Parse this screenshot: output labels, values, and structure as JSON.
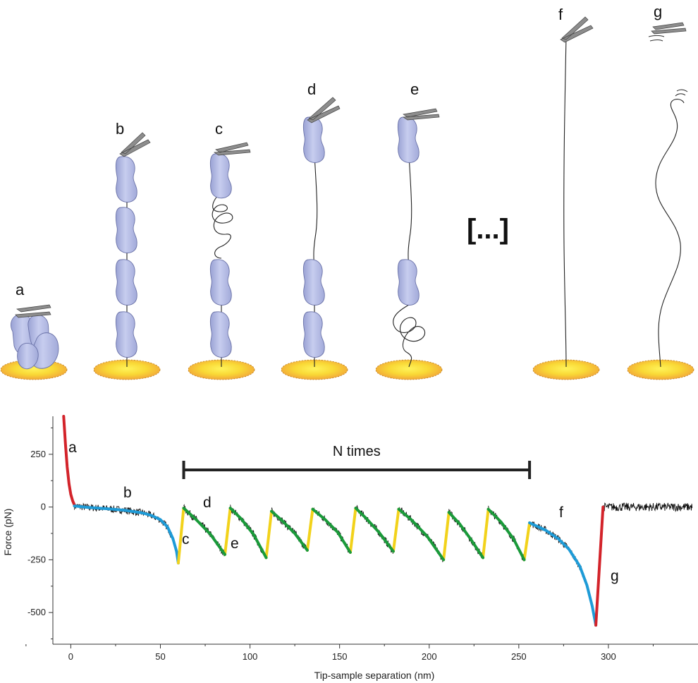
{
  "illustration": {
    "stages": [
      {
        "letter": "a"
      },
      {
        "letter": "b"
      },
      {
        "letter": "c"
      },
      {
        "letter": "d"
      },
      {
        "letter": "e"
      },
      {
        "letter": "f"
      },
      {
        "letter": "g"
      }
    ],
    "ellipsis": "[...]",
    "colors": {
      "domain": "#b9c0e6",
      "domain_edge": "#6a72a8",
      "substrate": "#f7c532",
      "cantilever": "#8a8a8a",
      "tether": "#222222"
    }
  },
  "chart_data": {
    "type": "line",
    "xlabel": "Tip-sample separation (nm)",
    "ylabel": "Force (pN)",
    "xlim": [
      -10,
      350
    ],
    "ylim": [
      -650,
      430
    ],
    "x_ticks": [
      0,
      50,
      100,
      150,
      200,
      250,
      300
    ],
    "y_ticks": [
      250,
      0,
      -250,
      -500
    ],
    "bracket_label": "N times",
    "bracket_range": [
      63,
      256
    ],
    "segment_labels": [
      "a",
      "b",
      "c",
      "d",
      "e",
      "f",
      "g"
    ],
    "colors": {
      "contact": "#d3232a",
      "wlc_fit": "#1e9bd7",
      "unfold": "#f2d21b",
      "domain_fit": "#1a9a3a",
      "raw": "#111111"
    },
    "series": [
      {
        "name": "contact",
        "x": [
          -4,
          -3,
          -2,
          -1,
          0,
          1,
          2
        ],
        "y": [
          430,
          300,
          190,
          110,
          60,
          30,
          10
        ]
      },
      {
        "name": "wlc_fit",
        "x": [
          2,
          10,
          20,
          30,
          40,
          45,
          50,
          54,
          57,
          59,
          60
        ],
        "y": [
          5,
          -2,
          -8,
          -15,
          -28,
          -40,
          -60,
          -95,
          -150,
          -210,
          -265
        ]
      },
      {
        "name": "unfold",
        "x": [
          [
            60,
            63
          ],
          [
            86,
            89
          ],
          [
            109,
            112
          ],
          [
            132,
            135
          ],
          [
            156,
            159
          ],
          [
            180,
            183
          ],
          [
            208,
            211
          ],
          [
            230,
            233
          ],
          [
            253,
            256
          ]
        ],
        "y": [
          [
            -265,
            -5
          ],
          [
            -225,
            -5
          ],
          [
            -240,
            -20
          ],
          [
            -205,
            -10
          ],
          [
            -215,
            -5
          ],
          [
            -210,
            -10
          ],
          [
            -250,
            -25
          ],
          [
            -240,
            -10
          ],
          [
            -250,
            -75
          ]
        ]
      },
      {
        "name": "domain_fit",
        "x": [
          [
            63,
            70,
            78,
            86
          ],
          [
            89,
            95,
            102,
            109
          ],
          [
            112,
            118,
            125,
            132
          ],
          [
            135,
            142,
            149,
            156
          ],
          [
            159,
            165,
            172,
            180
          ],
          [
            183,
            190,
            199,
            208
          ],
          [
            211,
            217,
            223,
            230
          ],
          [
            233,
            240,
            247,
            253
          ]
        ],
        "y": [
          [
            -5,
            -60,
            -130,
            -225
          ],
          [
            -5,
            -55,
            -130,
            -240
          ],
          [
            -20,
            -65,
            -125,
            -205
          ],
          [
            -10,
            -60,
            -120,
            -215
          ],
          [
            -5,
            -55,
            -120,
            -210
          ],
          [
            -10,
            -60,
            -140,
            -250
          ],
          [
            -25,
            -80,
            -150,
            -240
          ],
          [
            -10,
            -70,
            -150,
            -250
          ]
        ]
      },
      {
        "name": "wlc_fit_final",
        "x": [
          256,
          265,
          272,
          278,
          284,
          288,
          291,
          293
        ],
        "y": [
          -75,
          -110,
          -150,
          -200,
          -280,
          -370,
          -470,
          -560
        ]
      },
      {
        "name": "contact_release",
        "x": [
          293,
          297
        ],
        "y": [
          -560,
          0
        ]
      },
      {
        "name": "raw_baseline",
        "x": [
          297,
          347
        ],
        "y": [
          0,
          0
        ]
      }
    ]
  }
}
